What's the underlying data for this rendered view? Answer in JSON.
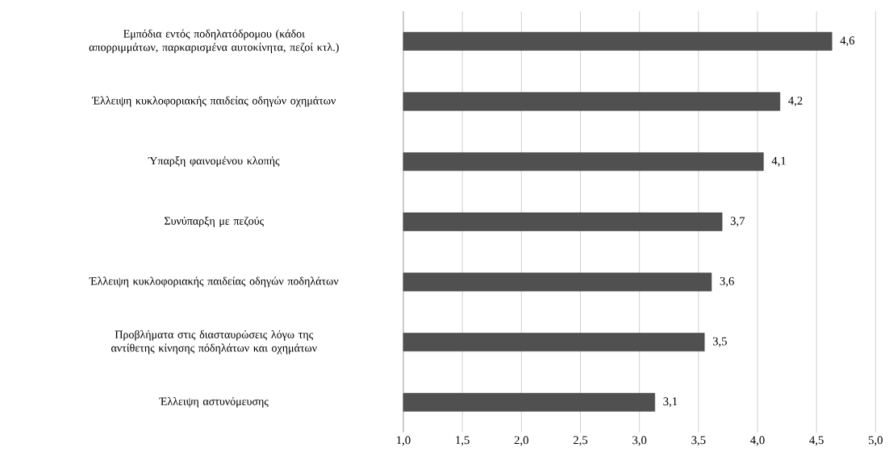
{
  "chart_data": {
    "type": "bar",
    "orientation": "horizontal",
    "categories": [
      "Εμπόδια εντός ποδηλατόδρομου (κάδοι απορριμμάτων, παρκαρισμένα αυτοκίνητα, πεζοί κτλ.)",
      "Έλλειψη κυκλοφοριακής παιδείας οδηγών οχημάτων",
      "Ύπαρξη φαινομένου κλοπής",
      "Συνύπαρξη με πεζούς",
      "Έλλειψη κυκλοφοριακής παιδείας οδηγών ποδηλάτων",
      "Προβλήματα στις διασταυρώσεις λόγω της αντίθετης κίνησης πόδηλάτων και οχημάτων",
      "Έλλειψη αστυνόμευσης"
    ],
    "values": [
      4.63,
      4.19,
      4.05,
      3.7,
      3.61,
      3.55,
      3.13
    ],
    "value_labels": [
      "4,6",
      "4,2",
      "4,1",
      "3,7",
      "3,6",
      "3,5",
      "3,1"
    ],
    "color": "#505050",
    "xlim": [
      1,
      5
    ],
    "xticks": [
      {
        "value": 1,
        "label": "1,0"
      },
      {
        "value": 1.5,
        "label": "1,5"
      },
      {
        "value": 2,
        "label": "2,0"
      },
      {
        "value": 2.5,
        "label": "2,5"
      },
      {
        "value": 3,
        "label": "3,0"
      },
      {
        "value": 3.5,
        "label": "3,5"
      },
      {
        "value": 4,
        "label": "4,0"
      },
      {
        "value": 4.5,
        "label": "4,5"
      },
      {
        "value": 5,
        "label": "5,0"
      }
    ],
    "grid": "x"
  }
}
